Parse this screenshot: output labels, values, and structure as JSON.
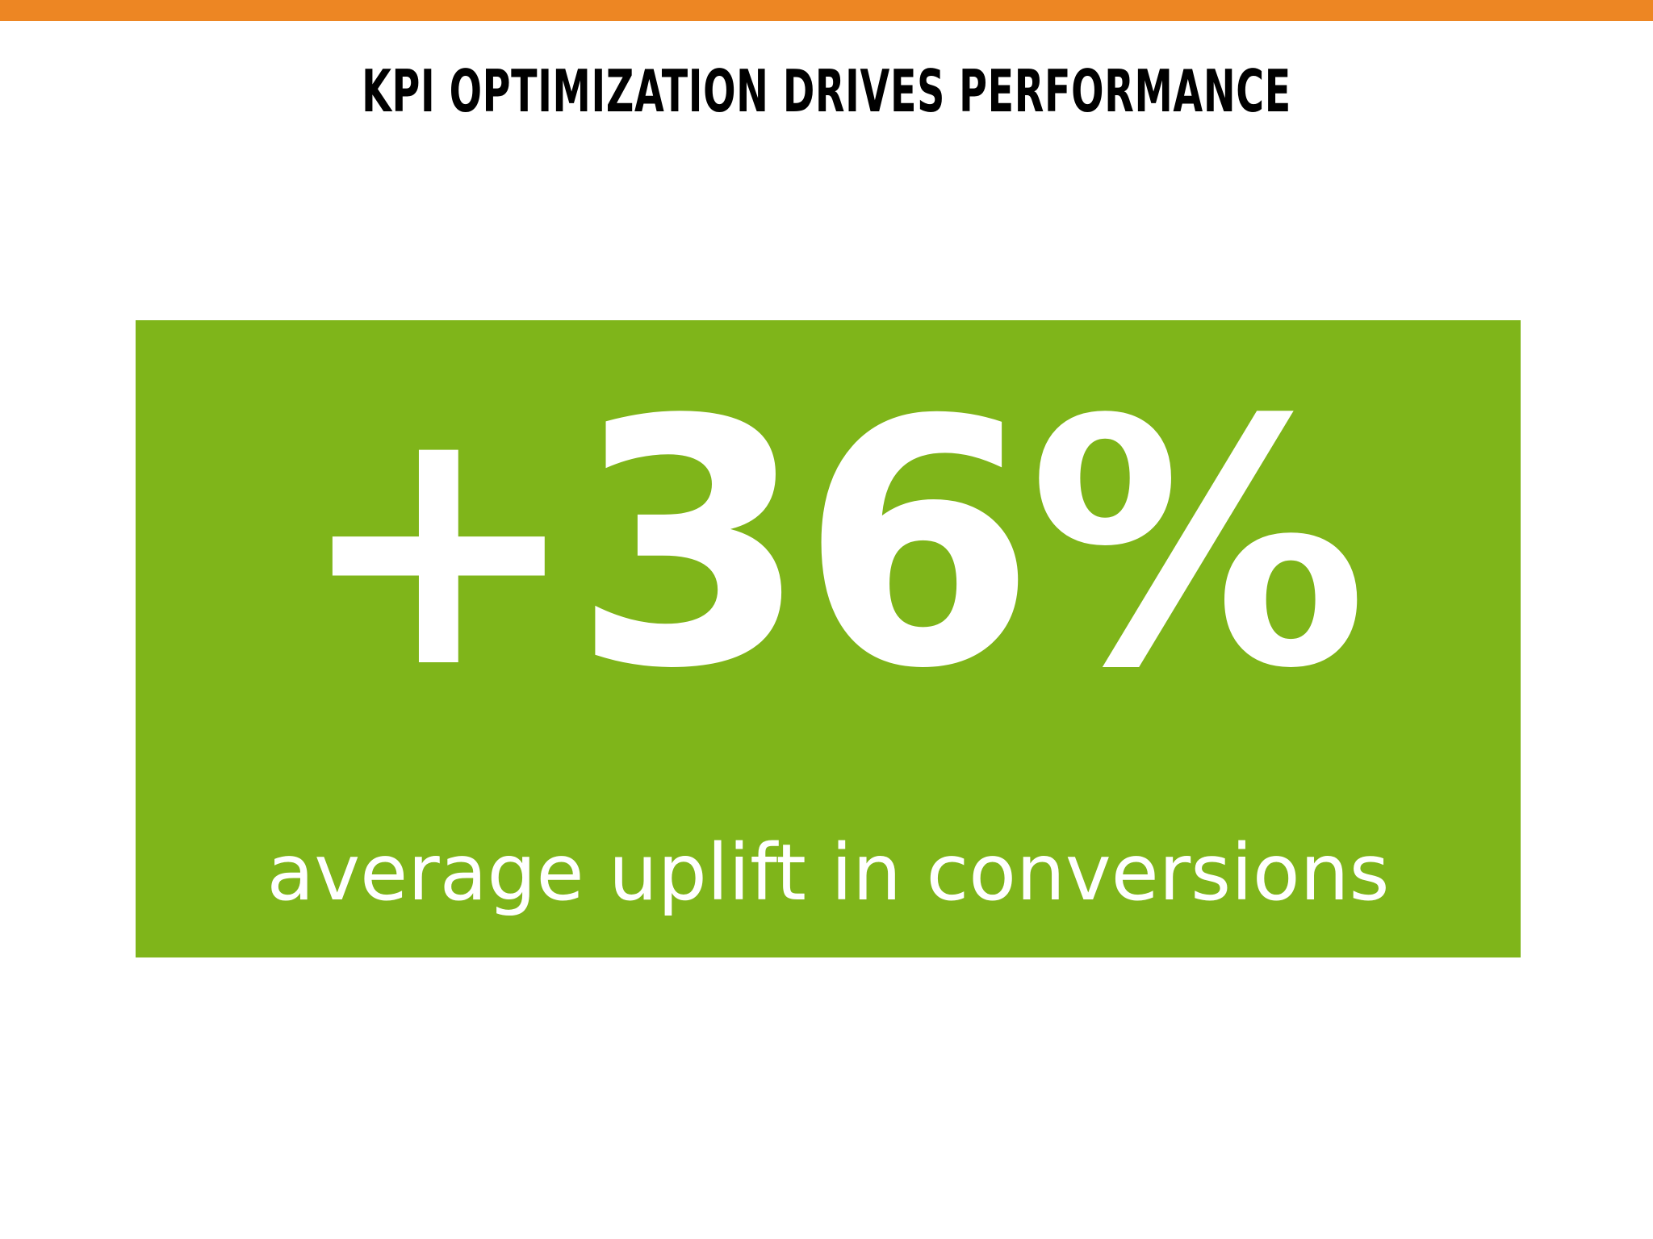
{
  "slide": {
    "title": "KPI Optimization Drives Performance",
    "stat": {
      "value": "+36%",
      "caption": "average uplift in conversions"
    }
  },
  "colors": {
    "accent_bar": "#ED8623",
    "stat_background": "#7FB51A",
    "title_text": "#000000",
    "stat_text": "#FFFFFF"
  }
}
